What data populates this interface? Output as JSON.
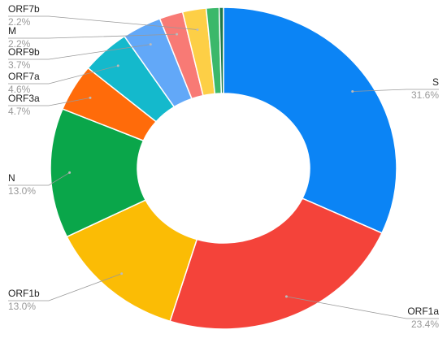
{
  "chart_data": {
    "type": "donut",
    "categories": [
      "S",
      "ORF1a",
      "ORF1b",
      "N",
      "ORF3a",
      "ORF7a",
      "ORF9b",
      "M",
      "ORF7b",
      null,
      null
    ],
    "values": [
      31.6,
      23.4,
      13.0,
      13.0,
      4.7,
      4.6,
      3.7,
      2.2,
      2.2,
      1.2,
      0.4
    ],
    "value_labels": [
      "31.6%",
      "23.4%",
      "13.0%",
      "13.0%",
      "4.7%",
      "4.6%",
      "3.7%",
      "2.2%",
      "2.2%",
      null,
      null
    ],
    "colors": [
      "#0b84f5",
      "#f4433a",
      "#fbbc05",
      "#0aa64a",
      "#ff6b0a",
      "#14b9cc",
      "#62a8f8",
      "#f87a75",
      "#fdcf46",
      "#3bb86a",
      "#1e7a4a"
    ]
  }
}
